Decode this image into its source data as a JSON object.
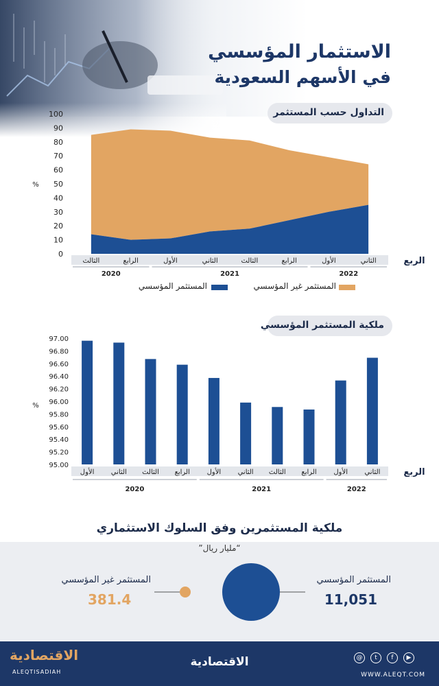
{
  "header": {
    "title_line1": "الاستثمار المؤسسي",
    "title_line2": "في الأسهم السعودية"
  },
  "chart1": {
    "section_title": "التداول حسب المستثمر",
    "axis_unit": "%",
    "axis_title": "الربع",
    "legend": {
      "non_institutional": "المستثمر غير المؤسسي",
      "institutional": "المستثمر المؤسسي"
    },
    "colors": {
      "non_institutional": "#e2a562",
      "institutional": "#1d4f94"
    }
  },
  "chart2": {
    "section_title": "ملكية المستثمر المؤسسي",
    "axis_unit": "%",
    "axis_title": "الربع",
    "color": "#1d4f94"
  },
  "chart_data": [
    {
      "type": "area",
      "title": "التداول حسب المستثمر",
      "ylabel": "%",
      "xlabel": "الربع",
      "ylim": [
        0,
        100
      ],
      "yticks": [
        0,
        10,
        20,
        30,
        40,
        50,
        60,
        70,
        80,
        90,
        100
      ],
      "categories": [
        "الثالث",
        "الرابع",
        "الأول",
        "الثاني",
        "الثالث",
        "الرابع",
        "الأول",
        "الثاني"
      ],
      "year_groups": [
        {
          "label": "2020",
          "from": 0,
          "to": 1
        },
        {
          "label": "2021",
          "from": 2,
          "to": 5
        },
        {
          "label": "2022",
          "from": 6,
          "to": 7
        }
      ],
      "series": [
        {
          "name": "المستثمر المؤسسي",
          "values": [
            14,
            10,
            11,
            16,
            18,
            24,
            30,
            35
          ]
        },
        {
          "name": "المستثمر غير المؤسسي",
          "values": [
            71,
            79,
            77,
            67,
            63,
            50,
            39,
            29
          ]
        }
      ],
      "grid": false,
      "legend_position": "bottom"
    },
    {
      "type": "bar",
      "title": "ملكية المستثمر المؤسسي",
      "ylabel": "%",
      "xlabel": "الربع",
      "ylim": [
        95.0,
        97.0
      ],
      "yticks": [
        "95.00",
        "95.20",
        "95.40",
        "95.60",
        "95.80",
        "96.00",
        "96.20",
        "96.40",
        "96.60",
        "96.80",
        "97.00"
      ],
      "categories": [
        "الأول",
        "الثاني",
        "الثالث",
        "الرابع",
        "الأول",
        "الثاني",
        "الثالث",
        "الرابع",
        "الأول",
        "الثاني"
      ],
      "year_groups": [
        {
          "label": "2020",
          "from": 0,
          "to": 3
        },
        {
          "label": "2021",
          "from": 4,
          "to": 7
        },
        {
          "label": "2022",
          "from": 8,
          "to": 9
        }
      ],
      "values": [
        96.96,
        96.93,
        96.67,
        96.58,
        96.37,
        95.98,
        95.91,
        95.87,
        96.33,
        96.69
      ],
      "grid": false
    }
  ],
  "ownership": {
    "title": "ملكية المستثمرين وفق السلوك الاستثماري",
    "unit": "“مليار ريال”",
    "institutional_label": "المستثمر المؤسسي",
    "institutional_value": "11,051",
    "non_institutional_label": "المستثمر غير المؤسسي",
    "non_institutional_value": "381.4",
    "colors": {
      "institutional": "#1d4f94",
      "non_institutional": "#e2a562"
    }
  },
  "footer": {
    "brand": "الاقتصادية",
    "brand_latin": "ALEQTISADIAH",
    "center_brand": "الاقتصادية",
    "website": "WWW.ALEQT.COM"
  }
}
